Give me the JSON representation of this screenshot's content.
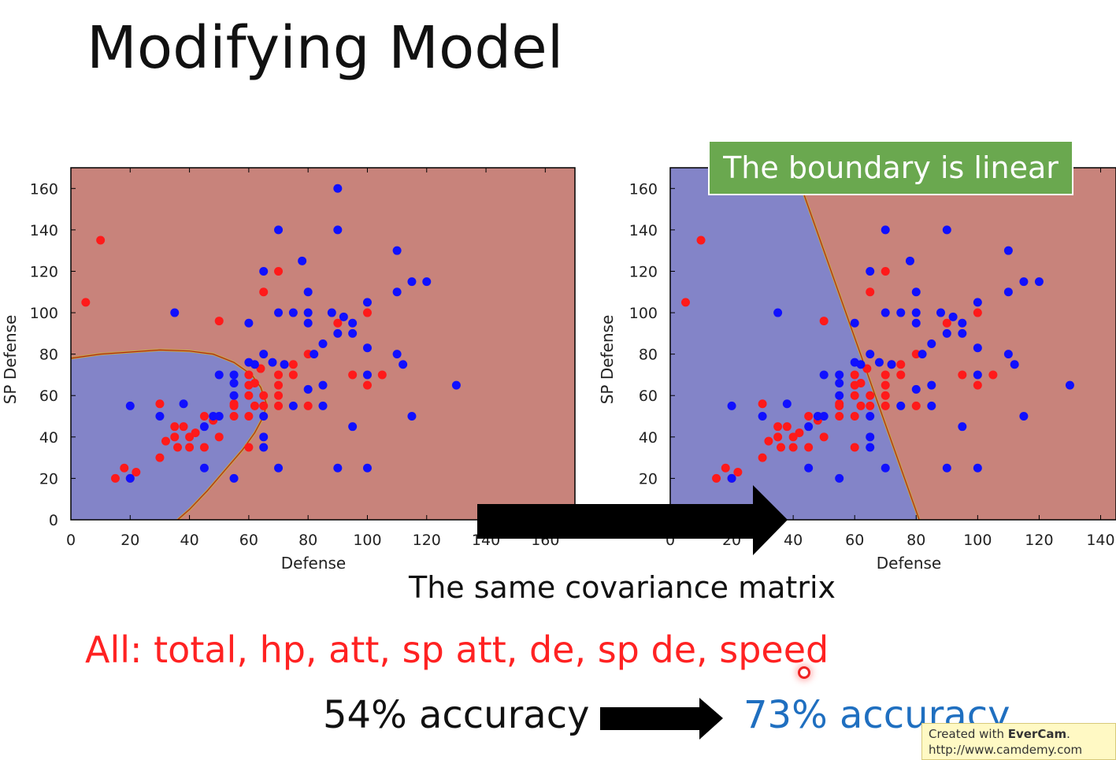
{
  "slide": {
    "title": "Modifying Model",
    "callout": "The boundary is linear",
    "subtitle": "The same covariance matrix",
    "features": "All: total, hp, att, sp att, de, sp de, speed",
    "accuracy_before": "54% accuracy",
    "accuracy_after": "73% accuracy"
  },
  "watermark": {
    "prefix": "Created with ",
    "brand": "EverCam",
    "suffix": ".",
    "url": "http://www.camdemy.com"
  },
  "colors": {
    "class_red_region": "#c8837b",
    "class_blue_region": "#8384c8",
    "point_red": "#ff1a1a",
    "point_blue": "#1010ff",
    "arrow": "#000000",
    "callout_bg": "#6aa84f",
    "features_text": "#ff2222",
    "accuracy_after_text": "#1f6fc0"
  },
  "icons": {
    "arrow_between_charts": "right-arrow-icon",
    "arrow_between_accuracies": "right-arrow-icon",
    "cursor": "mouse-cursor-icon"
  },
  "chart_data": [
    {
      "type": "scatter",
      "xlabel": "Defense",
      "ylabel": "SP Defense",
      "xlim": [
        0,
        170
      ],
      "ylim": [
        0,
        170
      ],
      "xticks": [
        0,
        20,
        40,
        60,
        80,
        100,
        120,
        140,
        160
      ],
      "yticks": [
        0,
        20,
        40,
        60,
        80,
        100,
        120,
        140,
        160
      ],
      "boundary": "quadratic",
      "boundary_curve": [
        [
          0,
          78
        ],
        [
          10,
          80
        ],
        [
          20,
          81
        ],
        [
          30,
          82
        ],
        [
          40,
          81.5
        ],
        [
          48,
          80
        ],
        [
          55,
          76
        ],
        [
          61,
          70
        ],
        [
          64,
          64
        ],
        [
          66,
          56
        ],
        [
          65,
          50
        ],
        [
          62,
          42
        ],
        [
          58,
          34
        ],
        [
          52,
          24
        ],
        [
          46,
          14
        ],
        [
          40,
          5
        ],
        [
          36,
          0
        ]
      ],
      "series": [
        {
          "color": "red",
          "points": [
            [
              5,
              105
            ],
            [
              10,
              135
            ],
            [
              15,
              20
            ],
            [
              18,
              25
            ],
            [
              20,
              20
            ],
            [
              22,
              23
            ],
            [
              30,
              30
            ],
            [
              30,
              56
            ],
            [
              32,
              38
            ],
            [
              35,
              45
            ],
            [
              35,
              40
            ],
            [
              36,
              35
            ],
            [
              38,
              45
            ],
            [
              40,
              35
            ],
            [
              40,
              40
            ],
            [
              42,
              42
            ],
            [
              45,
              35
            ],
            [
              45,
              50
            ],
            [
              48,
              48
            ],
            [
              50,
              40
            ],
            [
              50,
              96
            ],
            [
              55,
              55
            ],
            [
              55,
              50
            ],
            [
              55,
              56
            ],
            [
              60,
              60
            ],
            [
              60,
              65
            ],
            [
              60,
              70
            ],
            [
              60,
              50
            ],
            [
              60,
              35
            ],
            [
              62,
              55
            ],
            [
              62,
              66
            ],
            [
              64,
              73
            ],
            [
              65,
              110
            ],
            [
              65,
              60
            ],
            [
              65,
              55
            ],
            [
              70,
              70
            ],
            [
              70,
              60
            ],
            [
              70,
              65
            ],
            [
              70,
              55
            ],
            [
              70,
              120
            ],
            [
              72,
              75
            ],
            [
              75,
              70
            ],
            [
              75,
              75
            ],
            [
              80,
              55
            ],
            [
              80,
              80
            ],
            [
              90,
              95
            ],
            [
              95,
              70
            ],
            [
              100,
              100
            ],
            [
              100,
              65
            ],
            [
              105,
              70
            ]
          ]
        },
        {
          "color": "blue",
          "points": [
            [
              20,
              55
            ],
            [
              20,
              20
            ],
            [
              30,
              50
            ],
            [
              35,
              100
            ],
            [
              38,
              56
            ],
            [
              45,
              45
            ],
            [
              45,
              25
            ],
            [
              48,
              50
            ],
            [
              50,
              70
            ],
            [
              50,
              50
            ],
            [
              55,
              20
            ],
            [
              55,
              60
            ],
            [
              55,
              66
            ],
            [
              55,
              70
            ],
            [
              60,
              76
            ],
            [
              60,
              95
            ],
            [
              62,
              75
            ],
            [
              65,
              120
            ],
            [
              65,
              80
            ],
            [
              65,
              50
            ],
            [
              65,
              40
            ],
            [
              65,
              35
            ],
            [
              68,
              76
            ],
            [
              70,
              140
            ],
            [
              70,
              100
            ],
            [
              70,
              25
            ],
            [
              72,
              75
            ],
            [
              75,
              100
            ],
            [
              75,
              55
            ],
            [
              78,
              125
            ],
            [
              80,
              110
            ],
            [
              80,
              100
            ],
            [
              80,
              95
            ],
            [
              80,
              63
            ],
            [
              82,
              80
            ],
            [
              85,
              85
            ],
            [
              85,
              55
            ],
            [
              85,
              65
            ],
            [
              88,
              100
            ],
            [
              90,
              90
            ],
            [
              90,
              160
            ],
            [
              90,
              140
            ],
            [
              90,
              25
            ],
            [
              92,
              98
            ],
            [
              95,
              95
            ],
            [
              95,
              90
            ],
            [
              95,
              45
            ],
            [
              100,
              105
            ],
            [
              100,
              83
            ],
            [
              100,
              70
            ],
            [
              100,
              25
            ],
            [
              110,
              130
            ],
            [
              110,
              110
            ],
            [
              110,
              80
            ],
            [
              112,
              75
            ],
            [
              115,
              115
            ],
            [
              115,
              50
            ],
            [
              120,
              115
            ],
            [
              130,
              65
            ]
          ]
        }
      ]
    },
    {
      "type": "scatter",
      "xlabel": "Defense",
      "ylabel": "SP Defense",
      "xlim": [
        0,
        145
      ],
      "ylim": [
        0,
        170
      ],
      "xticks": [
        0,
        20,
        40,
        60,
        80,
        100,
        120,
        140
      ],
      "yticks": [
        20,
        40,
        60,
        80,
        100,
        120,
        140,
        160
      ],
      "boundary": "linear",
      "boundary_line": [
        [
          44,
          155
        ],
        [
          81,
          0
        ]
      ],
      "series": [
        {
          "color": "red",
          "points": [
            [
              5,
              105
            ],
            [
              10,
              135
            ],
            [
              15,
              20
            ],
            [
              18,
              25
            ],
            [
              20,
              20
            ],
            [
              22,
              23
            ],
            [
              30,
              30
            ],
            [
              30,
              56
            ],
            [
              32,
              38
            ],
            [
              35,
              45
            ],
            [
              35,
              40
            ],
            [
              36,
              35
            ],
            [
              38,
              45
            ],
            [
              40,
              35
            ],
            [
              40,
              40
            ],
            [
              42,
              42
            ],
            [
              45,
              35
            ],
            [
              45,
              50
            ],
            [
              48,
              48
            ],
            [
              50,
              40
            ],
            [
              50,
              96
            ],
            [
              55,
              55
            ],
            [
              55,
              50
            ],
            [
              55,
              56
            ],
            [
              60,
              60
            ],
            [
              60,
              65
            ],
            [
              60,
              70
            ],
            [
              60,
              50
            ],
            [
              60,
              35
            ],
            [
              62,
              55
            ],
            [
              62,
              66
            ],
            [
              64,
              73
            ],
            [
              65,
              110
            ],
            [
              65,
              60
            ],
            [
              65,
              55
            ],
            [
              70,
              70
            ],
            [
              70,
              60
            ],
            [
              70,
              65
            ],
            [
              70,
              55
            ],
            [
              70,
              120
            ],
            [
              72,
              75
            ],
            [
              75,
              70
            ],
            [
              75,
              75
            ],
            [
              80,
              55
            ],
            [
              80,
              80
            ],
            [
              90,
              95
            ],
            [
              95,
              70
            ],
            [
              100,
              100
            ],
            [
              100,
              65
            ],
            [
              105,
              70
            ]
          ]
        },
        {
          "color": "blue",
          "points": [
            [
              20,
              55
            ],
            [
              20,
              20
            ],
            [
              30,
              50
            ],
            [
              35,
              100
            ],
            [
              38,
              56
            ],
            [
              45,
              45
            ],
            [
              45,
              25
            ],
            [
              48,
              50
            ],
            [
              50,
              70
            ],
            [
              50,
              50
            ],
            [
              55,
              20
            ],
            [
              55,
              60
            ],
            [
              55,
              66
            ],
            [
              55,
              70
            ],
            [
              60,
              76
            ],
            [
              60,
              95
            ],
            [
              62,
              75
            ],
            [
              65,
              120
            ],
            [
              65,
              80
            ],
            [
              65,
              50
            ],
            [
              65,
              40
            ],
            [
              65,
              35
            ],
            [
              68,
              76
            ],
            [
              70,
              140
            ],
            [
              70,
              100
            ],
            [
              70,
              25
            ],
            [
              72,
              75
            ],
            [
              75,
              100
            ],
            [
              75,
              55
            ],
            [
              78,
              125
            ],
            [
              80,
              110
            ],
            [
              80,
              100
            ],
            [
              80,
              95
            ],
            [
              80,
              63
            ],
            [
              82,
              80
            ],
            [
              85,
              85
            ],
            [
              85,
              55
            ],
            [
              85,
              65
            ],
            [
              88,
              100
            ],
            [
              90,
              90
            ],
            [
              90,
              160
            ],
            [
              90,
              140
            ],
            [
              90,
              25
            ],
            [
              92,
              98
            ],
            [
              95,
              95
            ],
            [
              95,
              90
            ],
            [
              95,
              45
            ],
            [
              100,
              105
            ],
            [
              100,
              83
            ],
            [
              100,
              70
            ],
            [
              100,
              25
            ],
            [
              110,
              130
            ],
            [
              110,
              110
            ],
            [
              110,
              80
            ],
            [
              112,
              75
            ],
            [
              115,
              115
            ],
            [
              115,
              50
            ],
            [
              120,
              115
            ],
            [
              130,
              65
            ]
          ]
        }
      ]
    }
  ]
}
